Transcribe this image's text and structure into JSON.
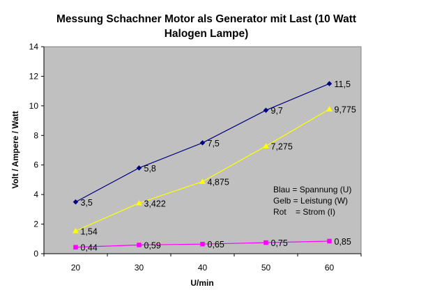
{
  "chart_data": {
    "type": "line",
    "title_lines": [
      "Messung Schachner Motor als Generator mit Last (10 Watt",
      "Halogen Lampe)"
    ],
    "xlabel": "U/min",
    "ylabel": "Volt / Ampere / Watt",
    "categories": [
      "20",
      "30",
      "40",
      "50",
      "60"
    ],
    "ylim": [
      0,
      14
    ],
    "ytick_step": 2,
    "yticks": [
      "0",
      "2",
      "4",
      "6",
      "8",
      "10",
      "12",
      "14"
    ],
    "series": [
      {
        "name": "Spannung (U)",
        "color": "#000080",
        "marker": "diamond",
        "values": [
          3.5,
          5.8,
          7.5,
          9.7,
          11.5
        ],
        "labels": [
          "3,5",
          "5,8",
          "7,5",
          "9,7",
          "11,5"
        ]
      },
      {
        "name": "Leistung (W)",
        "color": "#FFFF00",
        "marker": "triangle",
        "values": [
          1.54,
          3.422,
          4.875,
          7.275,
          9.775
        ],
        "labels": [
          "1,54",
          "3,422",
          "4,875",
          "7,275",
          "9,775"
        ]
      },
      {
        "name": "Strom (I)",
        "color": "#FF00FF",
        "marker": "square",
        "values": [
          0.44,
          0.59,
          0.65,
          0.75,
          0.85
        ],
        "labels": [
          "0,44",
          "0,59",
          "0,65",
          "0,75",
          "0,85"
        ]
      }
    ],
    "annotation_lines": [
      "Blau = Spannung (U)",
      "Gelb = Leistung (W)",
      "Rot    = Strom (I)"
    ],
    "plot_background": "#C0C0C0",
    "grid": false
  }
}
